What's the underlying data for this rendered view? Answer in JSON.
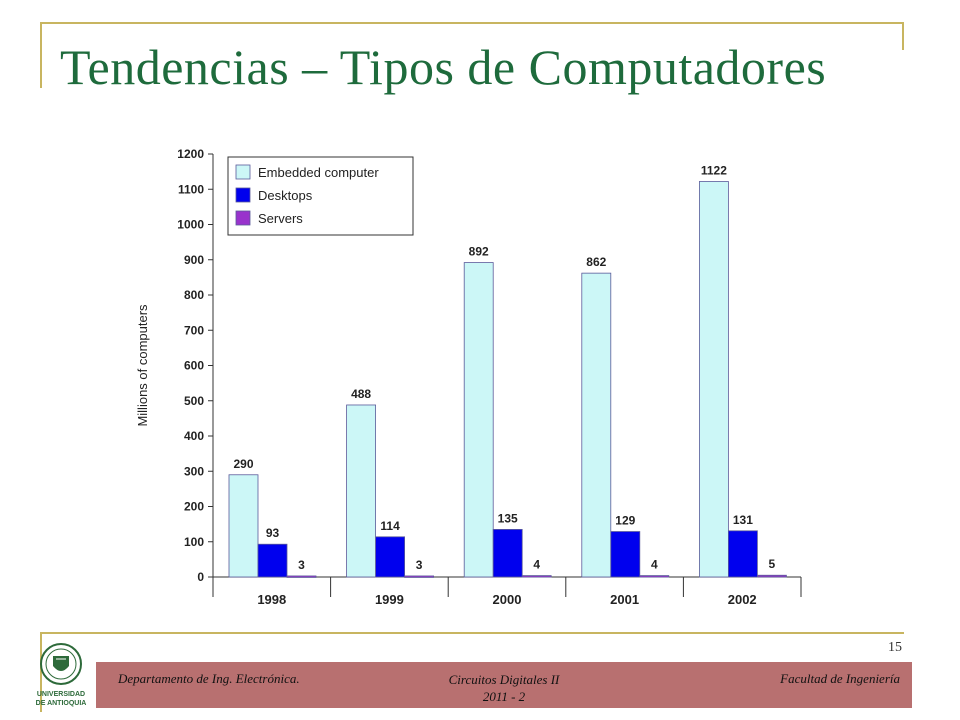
{
  "slide": {
    "title": "Tendencias – Tipos de Computadores",
    "page_number": "15"
  },
  "footer": {
    "left": "Departamento de Ing. Electrónica.",
    "center_line1": "Circuitos Digitales II",
    "center_line2": "2011 - 2",
    "right": "Facultad de Ingeniería"
  },
  "logo": {
    "line1": "UNIVERSIDAD",
    "line2": "DE ANTIOQUIA"
  },
  "colors": {
    "title": "#1e6b3c",
    "frame": "#c8b560",
    "footer_bar": "#b87070"
  },
  "chart_data": {
    "type": "bar",
    "title": "",
    "xlabel": "",
    "ylabel": "Millions of computers",
    "categories": [
      "1998",
      "1999",
      "2000",
      "2001",
      "2002"
    ],
    "ylim": [
      0,
      1200
    ],
    "yticks": [
      0,
      100,
      200,
      300,
      400,
      500,
      600,
      700,
      800,
      900,
      1000,
      1100,
      1200
    ],
    "grid": false,
    "legend_position": "top-left",
    "series": [
      {
        "name": "Embedded computer",
        "color": "#ccf7f7",
        "values": [
          290,
          488,
          892,
          862,
          1122
        ]
      },
      {
        "name": "Desktops",
        "color": "#0000ee",
        "values": [
          93,
          114,
          135,
          129,
          131
        ]
      },
      {
        "name": "Servers",
        "color": "#9933cc",
        "values": [
          3,
          3,
          4,
          4,
          5
        ]
      }
    ]
  }
}
